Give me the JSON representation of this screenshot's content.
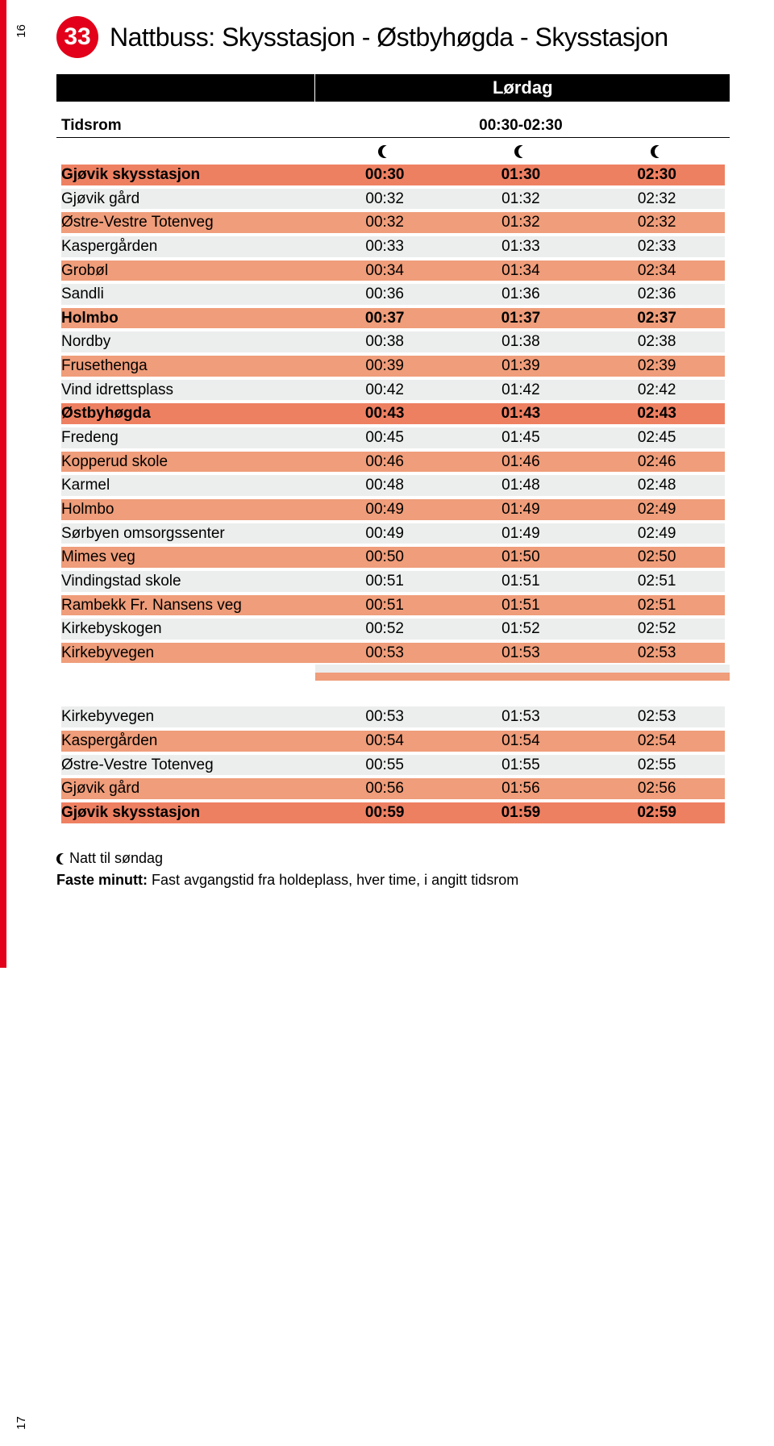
{
  "page_top": "16",
  "page_bottom": "17",
  "route_number": "33",
  "title": "Nattbuss: Skysstasjon - Østbyhøgda - Skysstasjon",
  "day_label": "Lørdag",
  "tidsrom": {
    "label": "Tidsrom",
    "value": "00:30-02:30"
  },
  "colors": {
    "orange": "#ef9d7a",
    "highlight": "#ee8062",
    "gray": "#eceded",
    "white": "#ffffff",
    "red": "#e2001a"
  },
  "rows1": [
    {
      "label": "Gjøvik skysstasjon",
      "t": [
        "00:30",
        "01:30",
        "02:30"
      ],
      "style": "highlight",
      "bold": true
    },
    {
      "label": "Gjøvik gård",
      "t": [
        "00:32",
        "01:32",
        "02:32"
      ],
      "style": "gray"
    },
    {
      "label": "Østre-Vestre Totenveg",
      "t": [
        "00:32",
        "01:32",
        "02:32"
      ],
      "style": "orange"
    },
    {
      "label": "Kaspergården",
      "t": [
        "00:33",
        "01:33",
        "02:33"
      ],
      "style": "gray"
    },
    {
      "label": "Grobøl",
      "t": [
        "00:34",
        "01:34",
        "02:34"
      ],
      "style": "orange"
    },
    {
      "label": "Sandli",
      "t": [
        "00:36",
        "01:36",
        "02:36"
      ],
      "style": "gray"
    },
    {
      "label": "Holmbo",
      "t": [
        "00:37",
        "01:37",
        "02:37"
      ],
      "style": "orange",
      "bold": true
    },
    {
      "label": "Nordby",
      "t": [
        "00:38",
        "01:38",
        "02:38"
      ],
      "style": "gray"
    },
    {
      "label": "Frusethenga",
      "t": [
        "00:39",
        "01:39",
        "02:39"
      ],
      "style": "orange"
    },
    {
      "label": "Vind idrettsplass",
      "t": [
        "00:42",
        "01:42",
        "02:42"
      ],
      "style": "gray"
    },
    {
      "label": "Østbyhøgda",
      "t": [
        "00:43",
        "01:43",
        "02:43"
      ],
      "style": "highlight",
      "bold": true
    },
    {
      "label": "Fredeng",
      "t": [
        "00:45",
        "01:45",
        "02:45"
      ],
      "style": "gray"
    },
    {
      "label": "Kopperud skole",
      "t": [
        "00:46",
        "01:46",
        "02:46"
      ],
      "style": "orange"
    },
    {
      "label": "Karmel",
      "t": [
        "00:48",
        "01:48",
        "02:48"
      ],
      "style": "gray"
    },
    {
      "label": "Holmbo",
      "t": [
        "00:49",
        "01:49",
        "02:49"
      ],
      "style": "orange"
    },
    {
      "label": "Sørbyen omsorgssenter",
      "t": [
        "00:49",
        "01:49",
        "02:49"
      ],
      "style": "gray"
    },
    {
      "label": "Mimes veg",
      "t": [
        "00:50",
        "01:50",
        "02:50"
      ],
      "style": "orange"
    },
    {
      "label": "Vindingstad skole",
      "t": [
        "00:51",
        "01:51",
        "02:51"
      ],
      "style": "gray"
    },
    {
      "label": "Rambekk Fr. Nansens veg",
      "t": [
        "00:51",
        "01:51",
        "02:51"
      ],
      "style": "orange"
    },
    {
      "label": "Kirkebyskogen",
      "t": [
        "00:52",
        "01:52",
        "02:52"
      ],
      "style": "gray"
    },
    {
      "label": "Kirkebyvegen",
      "t": [
        "00:53",
        "01:53",
        "02:53"
      ],
      "style": "orange"
    }
  ],
  "spacer_styles": [
    "gray",
    "orange"
  ],
  "rows2": [
    {
      "label": "Kirkebyvegen",
      "t": [
        "00:53",
        "01:53",
        "02:53"
      ],
      "style": "gray"
    },
    {
      "label": "Kaspergården",
      "t": [
        "00:54",
        "01:54",
        "02:54"
      ],
      "style": "orange"
    },
    {
      "label": "Østre-Vestre Totenveg",
      "t": [
        "00:55",
        "01:55",
        "02:55"
      ],
      "style": "gray"
    },
    {
      "label": "Gjøvik gård",
      "t": [
        "00:56",
        "01:56",
        "02:56"
      ],
      "style": "orange"
    },
    {
      "label": "Gjøvik skysstasjon",
      "t": [
        "00:59",
        "01:59",
        "02:59"
      ],
      "style": "highlight",
      "bold": true
    }
  ],
  "footnote_moon": "Natt til søndag",
  "footnote_bold": "Faste minutt:",
  "footnote_rest": " Fast avgangstid fra holdeplass, hver time, i angitt tidsrom"
}
